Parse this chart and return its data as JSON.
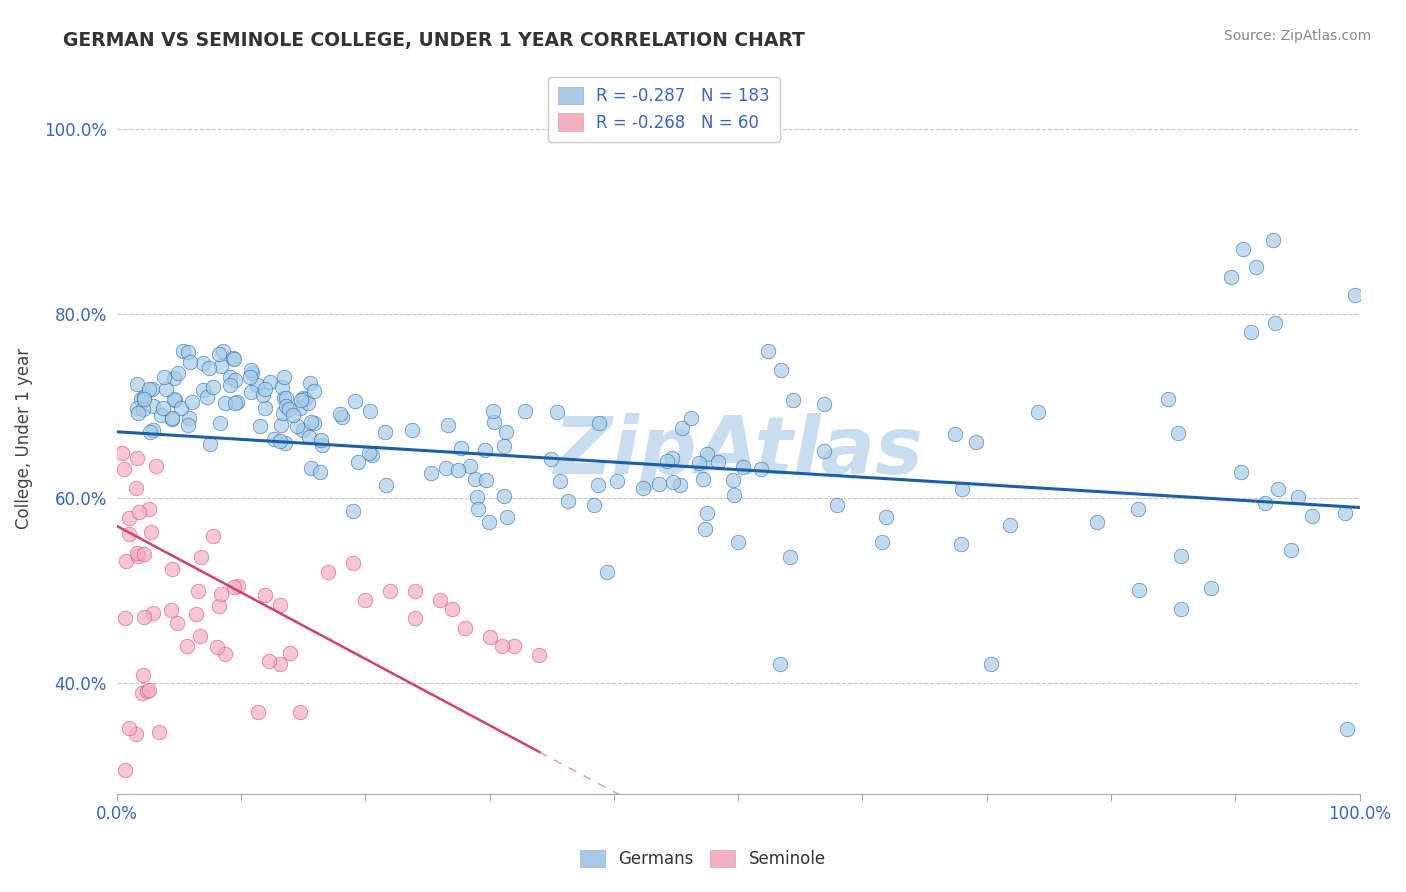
{
  "title": "GERMAN VS SEMINOLE COLLEGE, UNDER 1 YEAR CORRELATION CHART",
  "source": "Source: ZipAtlas.com",
  "ylabel": "College, Under 1 year",
  "xlim": [
    0.0,
    1.0
  ],
  "ylim": [
    0.28,
    1.05
  ],
  "xticks": [
    0.0,
    0.1,
    0.2,
    0.3,
    0.4,
    0.5,
    0.6,
    0.7,
    0.8,
    0.9,
    1.0
  ],
  "xtick_labels": [
    "0.0%",
    "",
    "",
    "",
    "",
    "",
    "",
    "",
    "",
    "",
    "100.0%"
  ],
  "ytick_labels": [
    "40.0%",
    "60.0%",
    "80.0%",
    "100.0%"
  ],
  "yticks": [
    0.4,
    0.6,
    0.8,
    1.0
  ],
  "german_color": "#a8cce8",
  "seminole_color": "#f4afc0",
  "german_line_color": "#1a5fa8",
  "seminole_line_color": "#d44070",
  "R_german": -0.287,
  "N_german": 183,
  "R_seminole": -0.268,
  "N_seminole": 60,
  "legend_text_color": "#3366cc",
  "background_color": "#ffffff",
  "grid_color": "#c8c8c8",
  "watermark_text": "ZipAtlas",
  "watermark_color": "#c8ddf0"
}
